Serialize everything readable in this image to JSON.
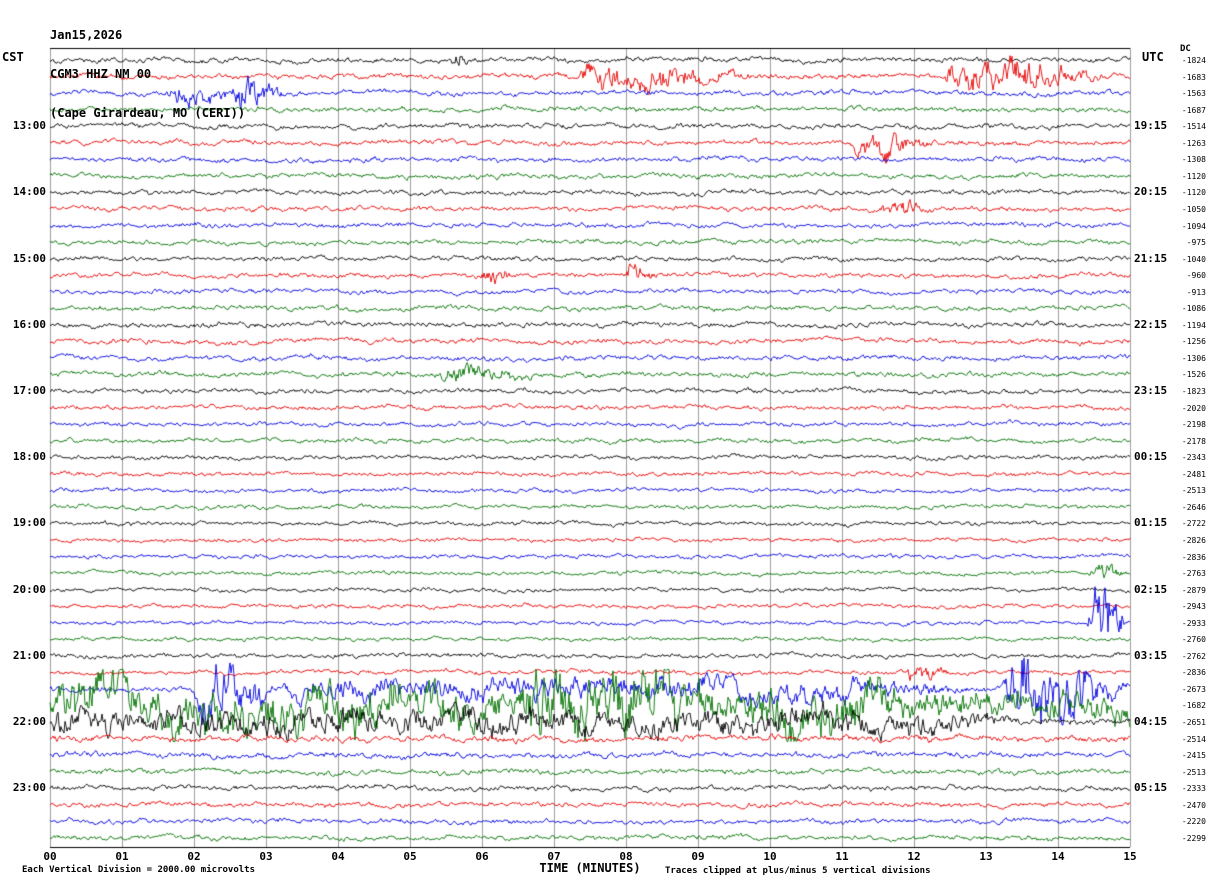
{
  "header": {
    "date": "Jan15,2026",
    "station": "CGM3 HHZ NM 00",
    "location": "(Cape Girardeau, MO (CERI))"
  },
  "axes": {
    "left_tz": "CST",
    "right_tz": "UTC",
    "dc_header": "DC",
    "x_title": "TIME (MINUTES)",
    "x_ticks": [
      "00",
      "01",
      "02",
      "03",
      "04",
      "05",
      "06",
      "07",
      "08",
      "09",
      "10",
      "11",
      "12",
      "13",
      "14",
      "15"
    ]
  },
  "footnotes": {
    "left": "Each Vertical Division = 2000.00 microvolts",
    "right": "Traces clipped at plus/minus 5 vertical divisions"
  },
  "left_labels": [
    {
      "row": 4,
      "text": "13:00"
    },
    {
      "row": 8,
      "text": "14:00"
    },
    {
      "row": 12,
      "text": "15:00"
    },
    {
      "row": 16,
      "text": "16:00"
    },
    {
      "row": 20,
      "text": "17:00"
    },
    {
      "row": 24,
      "text": "18:00"
    },
    {
      "row": 28,
      "text": "19:00"
    },
    {
      "row": 32,
      "text": "20:00"
    },
    {
      "row": 36,
      "text": "21:00"
    },
    {
      "row": 40,
      "text": "22:00"
    },
    {
      "row": 44,
      "text": "23:00"
    }
  ],
  "right_labels": [
    {
      "row": 4,
      "text": "19:15"
    },
    {
      "row": 8,
      "text": "20:15"
    },
    {
      "row": 12,
      "text": "21:15"
    },
    {
      "row": 16,
      "text": "22:15"
    },
    {
      "row": 20,
      "text": "23:15"
    },
    {
      "row": 24,
      "text": "00:15"
    },
    {
      "row": 28,
      "text": "01:15"
    },
    {
      "row": 32,
      "text": "02:15"
    },
    {
      "row": 36,
      "text": "03:15"
    },
    {
      "row": 40,
      "text": "04:15"
    },
    {
      "row": 44,
      "text": "05:15"
    }
  ],
  "chart_data": {
    "type": "line",
    "kind": "helicorder-seismogram",
    "title": "CGM3 HHZ NM 00 helicorder, Jan15,2026, Cape Girardeau, MO (CERI)",
    "x_range_minutes": [
      0,
      15
    ],
    "minutes_per_line": 15,
    "lines_per_hour": 4,
    "vertical_division_microvolts": 2000.0,
    "clip_divisions": 5,
    "grid": true,
    "grid_color": "#9c9c9c",
    "trace_color_cycle": [
      "#000000",
      "#e60000",
      "#0000e0",
      "#007200"
    ],
    "traces": [
      {
        "i": 0,
        "cst": "12:00",
        "dc": -1824,
        "amp": 2.6,
        "events": [
          {
            "s": 5.55,
            "e": 5.8,
            "a": 9
          }
        ]
      },
      {
        "i": 1,
        "cst": "12:15",
        "dc": -1683,
        "amp": 2.6,
        "events": [
          {
            "s": 7.3,
            "e": 9.9,
            "a": 10
          },
          {
            "s": 12.4,
            "e": 14.7,
            "a": 15
          }
        ]
      },
      {
        "i": 2,
        "cst": "12:30",
        "dc": -1563,
        "amp": 2.6,
        "events": [
          {
            "s": 1.6,
            "e": 2.6,
            "a": 9
          },
          {
            "s": 2.5,
            "e": 3.3,
            "a": 18
          }
        ]
      },
      {
        "i": 3,
        "cst": "12:45",
        "dc": -1687,
        "amp": 2.5,
        "events": []
      },
      {
        "i": 4,
        "cst": "13:00",
        "dc": -1514,
        "amp": 2.5,
        "events": []
      },
      {
        "i": 5,
        "cst": "13:15",
        "dc": -1263,
        "amp": 2.5,
        "events": [
          {
            "s": 11.1,
            "e": 12.3,
            "a": 11
          }
        ]
      },
      {
        "i": 6,
        "cst": "13:30",
        "dc": -1308,
        "amp": 2.5,
        "events": []
      },
      {
        "i": 7,
        "cst": "13:45",
        "dc": -1120,
        "amp": 2.4,
        "events": []
      },
      {
        "i": 8,
        "cst": "14:00",
        "dc": -1120,
        "amp": 2.4,
        "events": []
      },
      {
        "i": 9,
        "cst": "14:15",
        "dc": -1050,
        "amp": 2.4,
        "events": [
          {
            "s": 11.5,
            "e": 12.3,
            "a": 7
          }
        ]
      },
      {
        "i": 10,
        "cst": "14:30",
        "dc": -1094,
        "amp": 2.4,
        "events": []
      },
      {
        "i": 11,
        "cst": "14:45",
        "dc": -975,
        "amp": 2.3,
        "events": []
      },
      {
        "i": 12,
        "cst": "15:00",
        "dc": -1040,
        "amp": 2.3,
        "events": []
      },
      {
        "i": 13,
        "cst": "15:15",
        "dc": -960,
        "amp": 2.3,
        "events": [
          {
            "s": 5.9,
            "e": 6.5,
            "a": 7
          },
          {
            "s": 7.9,
            "e": 8.5,
            "a": 7
          }
        ]
      },
      {
        "i": 14,
        "cst": "15:30",
        "dc": -913,
        "amp": 2.3,
        "events": []
      },
      {
        "i": 15,
        "cst": "15:45",
        "dc": -1086,
        "amp": 2.4,
        "events": []
      },
      {
        "i": 16,
        "cst": "16:00",
        "dc": -1194,
        "amp": 2.5,
        "events": []
      },
      {
        "i": 17,
        "cst": "16:15",
        "dc": -1256,
        "amp": 2.5,
        "events": []
      },
      {
        "i": 18,
        "cst": "16:30",
        "dc": -1306,
        "amp": 2.5,
        "events": []
      },
      {
        "i": 19,
        "cst": "16:45",
        "dc": -1526,
        "amp": 2.5,
        "events": [
          {
            "s": 5.4,
            "e": 6.8,
            "a": 8
          }
        ]
      },
      {
        "i": 20,
        "cst": "17:00",
        "dc": -1823,
        "amp": 2.4,
        "events": []
      },
      {
        "i": 21,
        "cst": "17:15",
        "dc": -2020,
        "amp": 2.3,
        "events": []
      },
      {
        "i": 22,
        "cst": "17:30",
        "dc": -2198,
        "amp": 2.2,
        "events": []
      },
      {
        "i": 23,
        "cst": "17:45",
        "dc": -2178,
        "amp": 2.2,
        "events": []
      },
      {
        "i": 24,
        "cst": "18:00",
        "dc": -2343,
        "amp": 2.2,
        "events": []
      },
      {
        "i": 25,
        "cst": "18:15",
        "dc": -2481,
        "amp": 2.1,
        "events": []
      },
      {
        "i": 26,
        "cst": "18:30",
        "dc": -2513,
        "amp": 2.1,
        "events": []
      },
      {
        "i": 27,
        "cst": "18:45",
        "dc": -2646,
        "amp": 2.1,
        "events": []
      },
      {
        "i": 28,
        "cst": "19:00",
        "dc": -2722,
        "amp": 2.1,
        "events": []
      },
      {
        "i": 29,
        "cst": "19:15",
        "dc": -2826,
        "amp": 2.0,
        "events": []
      },
      {
        "i": 30,
        "cst": "19:30",
        "dc": -2836,
        "amp": 2.0,
        "events": []
      },
      {
        "i": 31,
        "cst": "19:45",
        "dc": -2763,
        "amp": 2.0,
        "events": [
          {
            "s": 14.4,
            "e": 15,
            "a": 10
          }
        ]
      },
      {
        "i": 32,
        "cst": "20:00",
        "dc": -2879,
        "amp": 2.0,
        "events": []
      },
      {
        "i": 33,
        "cst": "20:15",
        "dc": -2943,
        "amp": 2.0,
        "events": []
      },
      {
        "i": 34,
        "cst": "20:30",
        "dc": -2933,
        "amp": 2.0,
        "events": [
          {
            "s": 14.4,
            "e": 15,
            "a": 34
          }
        ]
      },
      {
        "i": 35,
        "cst": "20:45",
        "dc": -2760,
        "amp": 2.0,
        "events": []
      },
      {
        "i": 36,
        "cst": "21:00",
        "dc": -2762,
        "amp": 2.2,
        "events": []
      },
      {
        "i": 37,
        "cst": "21:15",
        "dc": -2836,
        "amp": 2.2,
        "events": [
          {
            "s": 11.8,
            "e": 12.6,
            "a": 6
          }
        ]
      },
      {
        "i": 38,
        "cst": "21:30",
        "dc": -2673,
        "amp": 2.8,
        "events": [
          {
            "s": 2.0,
            "e": 3.2,
            "a": 24
          },
          {
            "s": 3.2,
            "e": 12.8,
            "a": 8
          },
          {
            "s": 13.2,
            "e": 15,
            "a": 32
          }
        ]
      },
      {
        "i": 39,
        "cst": "21:45",
        "dc": -1682,
        "amp": 13,
        "events": [
          {
            "s": 0,
            "e": 6.5,
            "a": 11
          },
          {
            "s": 6.5,
            "e": 9.6,
            "a": 22
          },
          {
            "s": 9.6,
            "e": 12.2,
            "a": 13
          }
        ]
      },
      {
        "i": 40,
        "cst": "22:00",
        "dc": -2651,
        "amp": 3.5,
        "events": [
          {
            "s": 0,
            "e": 13.6,
            "a": 9
          }
        ]
      },
      {
        "i": 41,
        "cst": "22:15",
        "dc": -2514,
        "amp": 3.2,
        "events": []
      },
      {
        "i": 42,
        "cst": "22:30",
        "dc": -2415,
        "amp": 2.8,
        "events": []
      },
      {
        "i": 43,
        "cst": "22:45",
        "dc": -2513,
        "amp": 2.6,
        "events": []
      },
      {
        "i": 44,
        "cst": "23:00",
        "dc": -2333,
        "amp": 2.5,
        "events": []
      },
      {
        "i": 45,
        "cst": "23:15",
        "dc": -2470,
        "amp": 2.4,
        "events": []
      },
      {
        "i": 46,
        "cst": "23:30",
        "dc": -2220,
        "amp": 2.4,
        "events": []
      },
      {
        "i": 47,
        "cst": "23:45",
        "dc": -2299,
        "amp": 2.4,
        "events": []
      }
    ]
  }
}
